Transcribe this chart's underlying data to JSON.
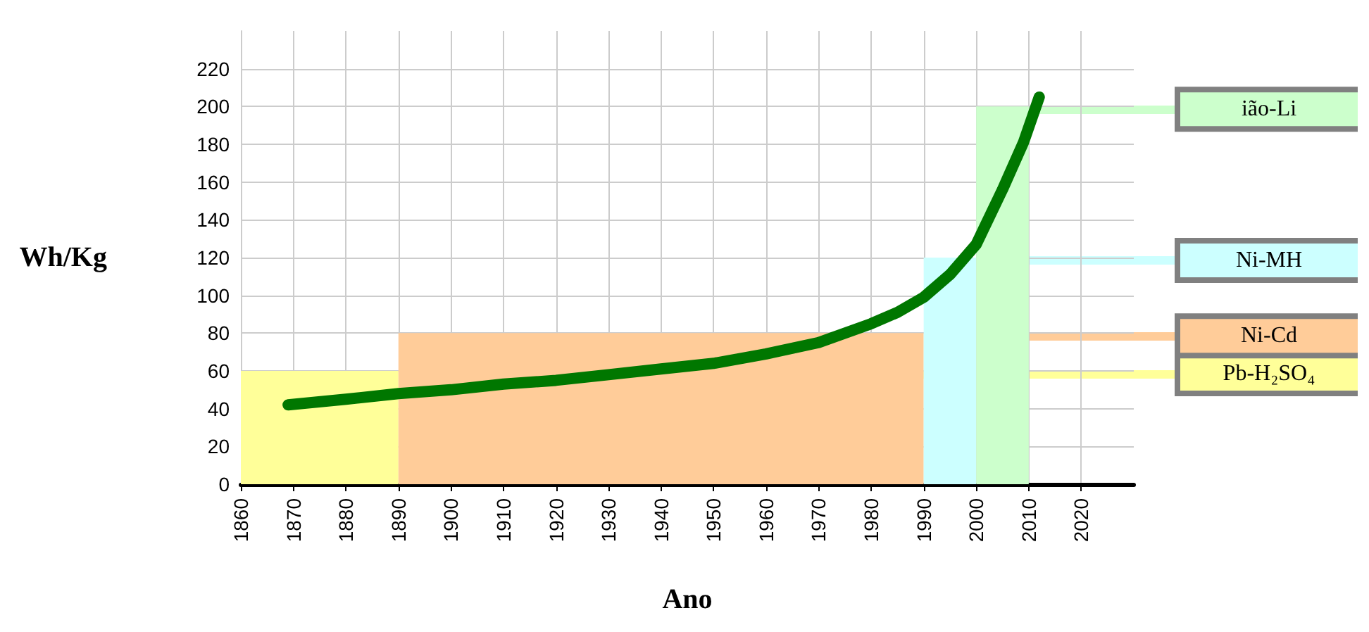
{
  "chart_data": {
    "type": "area",
    "xlabel": "Ano",
    "ylabel": "Wh/Kg",
    "xlim": [
      1860,
      2030
    ],
    "xticks": [
      1860,
      1870,
      1880,
      1890,
      1900,
      1910,
      1920,
      1930,
      1940,
      1950,
      1960,
      1970,
      1980,
      1990,
      2000,
      2010,
      2020
    ],
    "ylim": [
      0,
      240
    ],
    "yticks": [
      0,
      20,
      40,
      60,
      80,
      100,
      120,
      140,
      160,
      180,
      200,
      220
    ],
    "grid": true,
    "legend": "right",
    "series": [
      {
        "name": "Pb-H₂SO₄",
        "color": "#ffff99",
        "x": [
          1860,
          1890
        ],
        "values": [
          60,
          60
        ]
      },
      {
        "name": "Ni-Cd",
        "color": "#ffcc99",
        "x": [
          1890,
          1990
        ],
        "values": [
          80,
          80
        ]
      },
      {
        "name": "Ni-MH",
        "color": "#ccffff",
        "x": [
          1990,
          2000
        ],
        "values": [
          120,
          120
        ]
      },
      {
        "name": "ião-Li",
        "color": "#ccffcc",
        "x": [
          2000,
          2010
        ],
        "values": [
          200,
          200
        ]
      },
      {
        "type": "line",
        "color": "#007700",
        "x": [
          1869,
          1880,
          1890,
          1900,
          1910,
          1920,
          1930,
          1940,
          1950,
          1960,
          1970,
          1980,
          1985,
          1990,
          1995,
          2000,
          2005,
          2009,
          2012
        ],
        "values": [
          42,
          45,
          48,
          50,
          53,
          55,
          58,
          61,
          64,
          69,
          75,
          85,
          91,
          99,
          111,
          127,
          156,
          181,
          205
        ]
      }
    ]
  }
}
